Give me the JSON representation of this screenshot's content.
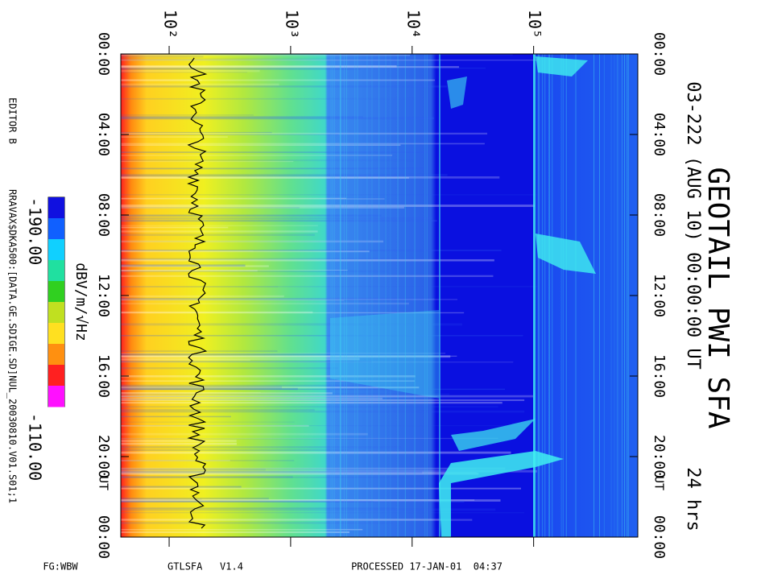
{
  "chart_data": {
    "type": "spectrogram",
    "title": "GEOTAIL PWI SFA",
    "subtitle": "03-222 (AUG 10) 00:00:00 UT",
    "duration": "24 hrs",
    "time_unit_label": "UT",
    "xscale": "log",
    "xlim": [
      40,
      720000
    ],
    "xticks": [
      {
        "value": 100,
        "label": "10²"
      },
      {
        "value": 1000,
        "label": "10³"
      },
      {
        "value": 10000,
        "label": "10⁴"
      },
      {
        "value": 100000,
        "label": "10⁵"
      }
    ],
    "ylim": [
      0,
      24
    ],
    "yticks": [
      {
        "value": 0,
        "label": "00:00"
      },
      {
        "value": 4,
        "label": "04:00"
      },
      {
        "value": 8,
        "label": "08:00"
      },
      {
        "value": 12,
        "label": "12:00"
      },
      {
        "value": 16,
        "label": "16:00"
      },
      {
        "value": 20,
        "label": "20:00"
      },
      {
        "value": 24,
        "label": "00:00"
      }
    ],
    "colorbar": {
      "label": "dBV/m/√Hz",
      "ticks": [
        {
          "value": -190,
          "label": "-190.00"
        },
        {
          "value": -110,
          "label": "-110.00"
        }
      ],
      "colormap": [
        "#1010e0",
        "#1060ff",
        "#10d0ff",
        "#20e0a0",
        "#30d020",
        "#c0e020",
        "#ffe020",
        "#ff9010",
        "#ff2020",
        "#ff10ff"
      ]
    },
    "editor": "EDITOR B",
    "file": "RRAVAX$DKA500:[DATA.GE.SDIGE.SD]NUL_20030810.V01.S01;1",
    "footer": {
      "mode": "FG:WBW",
      "program": "GTLSFA   V1.4",
      "processed": "PROCESSED 17-JAN-01  04:37"
    }
  }
}
